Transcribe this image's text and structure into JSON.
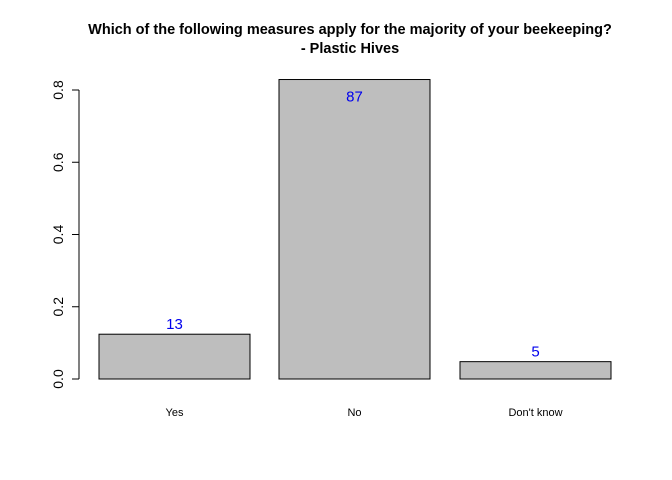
{
  "chart_data": {
    "type": "bar",
    "title_lines": [
      "Which of the following measures apply for the majority of your beekeeping?",
      "- Plastic Hives"
    ],
    "categories": [
      "Yes",
      "No",
      "Don't know"
    ],
    "values": [
      0.124,
      0.829,
      0.048
    ],
    "data_labels": [
      "13",
      "87",
      "5"
    ],
    "xlabel": "",
    "ylabel": "",
    "yticks": [
      "0.0",
      "0.2",
      "0.4",
      "0.6",
      "0.8"
    ],
    "ylim": [
      0,
      0.85
    ],
    "grid": false,
    "legend": "none",
    "colors": {
      "bar_fill": "#bebebe",
      "bar_stroke": "#000000",
      "data_label": "#0000ee"
    }
  }
}
